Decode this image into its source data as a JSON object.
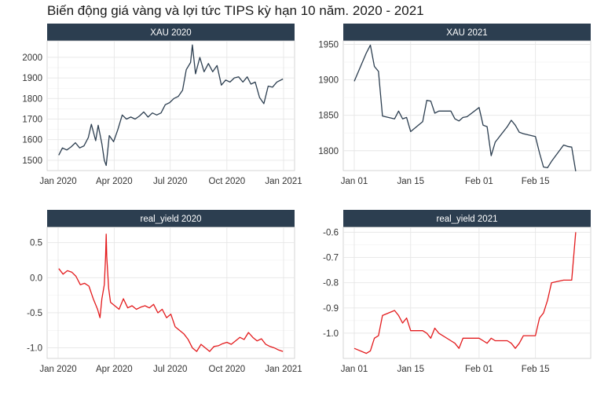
{
  "figure": {
    "title": "Biến động giá vàng và lợi tức TIPS kỳ hạn 10 năm. 2020 - 2021"
  },
  "colors": {
    "strip_bg": "#2c3e50",
    "strip_text": "#ffffff",
    "xau_line": "#2c3e50",
    "yield_line": "#e31a1c",
    "grid": "#e6e6e6",
    "axis_text": "#333333"
  },
  "chart_data": [
    {
      "type": "line",
      "panel": "XAU 2020",
      "strip": "XAU 2020",
      "x_scale": "date",
      "xlim": [
        "2020-01-01",
        "2021-01-01"
      ],
      "x_ticks": [
        {
          "x": "2020-01-01",
          "label": "Jan 2020"
        },
        {
          "x": "2020-04-01",
          "label": "Apr 2020"
        },
        {
          "x": "2020-07-01",
          "label": "Jul 2020"
        },
        {
          "x": "2020-10-01",
          "label": "Oct 2020"
        },
        {
          "x": "2021-01-01",
          "label": "Jan 2021"
        }
      ],
      "ylim": [
        1450,
        2080
      ],
      "y_ticks": [
        1500,
        1600,
        1700,
        1800,
        1900,
        2000
      ],
      "series": [
        {
          "x": [
            "2020-01-02",
            "2020-01-08",
            "2020-01-15",
            "2020-01-22",
            "2020-01-29",
            "2020-02-05",
            "2020-02-12",
            "2020-02-19",
            "2020-02-24",
            "2020-03-02",
            "2020-03-06",
            "2020-03-12",
            "2020-03-16",
            "2020-03-19",
            "2020-03-24",
            "2020-03-31",
            "2020-04-07",
            "2020-04-14",
            "2020-04-21",
            "2020-04-28",
            "2020-05-05",
            "2020-05-12",
            "2020-05-19",
            "2020-05-26",
            "2020-06-02",
            "2020-06-09",
            "2020-06-16",
            "2020-06-23",
            "2020-06-30",
            "2020-07-07",
            "2020-07-14",
            "2020-07-21",
            "2020-07-27",
            "2020-08-03",
            "2020-08-06",
            "2020-08-11",
            "2020-08-18",
            "2020-08-25",
            "2020-09-01",
            "2020-09-08",
            "2020-09-15",
            "2020-09-22",
            "2020-09-29",
            "2020-10-06",
            "2020-10-13",
            "2020-10-20",
            "2020-10-27",
            "2020-11-03",
            "2020-11-09",
            "2020-11-16",
            "2020-11-23",
            "2020-11-30",
            "2020-12-07",
            "2020-12-14",
            "2020-12-21",
            "2020-12-31"
          ],
          "y": [
            1525,
            1560,
            1550,
            1565,
            1585,
            1560,
            1570,
            1610,
            1675,
            1595,
            1670,
            1580,
            1500,
            1475,
            1620,
            1590,
            1650,
            1720,
            1700,
            1710,
            1700,
            1715,
            1735,
            1710,
            1730,
            1720,
            1730,
            1770,
            1780,
            1800,
            1810,
            1840,
            1940,
            1975,
            2060,
            1920,
            2000,
            1930,
            1970,
            1930,
            1960,
            1865,
            1890,
            1880,
            1900,
            1905,
            1880,
            1905,
            1870,
            1880,
            1805,
            1775,
            1860,
            1855,
            1880,
            1895
          ]
        }
      ]
    },
    {
      "type": "line",
      "panel": "XAU 2021",
      "strip": "XAU 2021",
      "x_scale": "date",
      "xlim": [
        "2021-01-01",
        "2021-02-26"
      ],
      "x_ticks": [
        {
          "x": "2021-01-01",
          "label": "Jan 01"
        },
        {
          "x": "2021-01-15",
          "label": "Jan 15"
        },
        {
          "x": "2021-02-01",
          "label": "Feb 01"
        },
        {
          "x": "2021-02-15",
          "label": "Feb 15"
        }
      ],
      "ylim": [
        1772,
        1955
      ],
      "y_ticks": [
        1800,
        1850,
        1900,
        1950
      ],
      "series": [
        {
          "x": [
            "2021-01-01",
            "2021-01-04",
            "2021-01-05",
            "2021-01-06",
            "2021-01-07",
            "2021-01-08",
            "2021-01-11",
            "2021-01-12",
            "2021-01-13",
            "2021-01-14",
            "2021-01-15",
            "2021-01-18",
            "2021-01-19",
            "2021-01-20",
            "2021-01-21",
            "2021-01-22",
            "2021-01-25",
            "2021-01-26",
            "2021-01-27",
            "2021-01-28",
            "2021-01-29",
            "2021-02-01",
            "2021-02-02",
            "2021-02-03",
            "2021-02-04",
            "2021-02-05",
            "2021-02-08",
            "2021-02-09",
            "2021-02-10",
            "2021-02-11",
            "2021-02-12",
            "2021-02-15",
            "2021-02-16",
            "2021-02-17",
            "2021-02-18",
            "2021-02-19",
            "2021-02-22",
            "2021-02-23",
            "2021-02-24",
            "2021-02-25"
          ],
          "y": [
            1898,
            1938,
            1949,
            1919,
            1912,
            1849,
            1845,
            1856,
            1845,
            1847,
            1827,
            1841,
            1871,
            1870,
            1853,
            1856,
            1856,
            1845,
            1842,
            1847,
            1848,
            1861,
            1836,
            1834,
            1793,
            1812,
            1834,
            1843,
            1836,
            1826,
            1824,
            1820,
            1797,
            1777,
            1776,
            1785,
            1808,
            1806,
            1805,
            1771
          ]
        }
      ]
    },
    {
      "type": "line",
      "panel": "real_yield 2020",
      "strip": "real_yield 2020",
      "x_scale": "date",
      "xlim": [
        "2020-01-01",
        "2021-01-01"
      ],
      "x_ticks": [
        {
          "x": "2020-01-01",
          "label": "Jan 2020"
        },
        {
          "x": "2020-04-01",
          "label": "Apr 2020"
        },
        {
          "x": "2020-07-01",
          "label": "Jul 2020"
        },
        {
          "x": "2020-10-01",
          "label": "Oct 2020"
        },
        {
          "x": "2021-01-01",
          "label": "Jan 2021"
        }
      ],
      "ylim": [
        -1.15,
        0.72
      ],
      "y_ticks": [
        -1.0,
        -0.5,
        0.0,
        0.5
      ],
      "y_tick_labels": [
        "-1.0",
        "-0.5",
        "0.0",
        "0.5"
      ],
      "series": [
        {
          "x": [
            "2020-01-02",
            "2020-01-09",
            "2020-01-16",
            "2020-01-23",
            "2020-01-30",
            "2020-02-06",
            "2020-02-13",
            "2020-02-20",
            "2020-02-27",
            "2020-03-05",
            "2020-03-09",
            "2020-03-12",
            "2020-03-16",
            "2020-03-18",
            "2020-03-19",
            "2020-03-20",
            "2020-03-23",
            "2020-03-26",
            "2020-04-02",
            "2020-04-09",
            "2020-04-16",
            "2020-04-23",
            "2020-04-30",
            "2020-05-07",
            "2020-05-14",
            "2020-05-21",
            "2020-05-28",
            "2020-06-04",
            "2020-06-11",
            "2020-06-18",
            "2020-06-25",
            "2020-07-02",
            "2020-07-09",
            "2020-07-16",
            "2020-07-23",
            "2020-07-30",
            "2020-08-06",
            "2020-08-13",
            "2020-08-20",
            "2020-08-27",
            "2020-09-03",
            "2020-09-10",
            "2020-09-17",
            "2020-09-24",
            "2020-10-01",
            "2020-10-08",
            "2020-10-15",
            "2020-10-22",
            "2020-10-29",
            "2020-11-05",
            "2020-11-12",
            "2020-11-19",
            "2020-11-26",
            "2020-12-03",
            "2020-12-10",
            "2020-12-17",
            "2020-12-24",
            "2020-12-31"
          ],
          "y": [
            0.13,
            0.05,
            0.1,
            0.08,
            0.02,
            -0.1,
            -0.08,
            -0.12,
            -0.3,
            -0.45,
            -0.57,
            -0.3,
            -0.1,
            0.3,
            0.62,
            0.3,
            -0.15,
            -0.35,
            -0.4,
            -0.45,
            -0.3,
            -0.43,
            -0.4,
            -0.45,
            -0.42,
            -0.4,
            -0.43,
            -0.38,
            -0.5,
            -0.45,
            -0.57,
            -0.52,
            -0.7,
            -0.75,
            -0.8,
            -0.88,
            -1.0,
            -1.05,
            -0.95,
            -1.0,
            -1.05,
            -0.98,
            -0.97,
            -0.94,
            -0.92,
            -0.95,
            -0.9,
            -0.85,
            -0.88,
            -0.78,
            -0.85,
            -0.9,
            -0.87,
            -0.95,
            -0.98,
            -1.0,
            -1.03,
            -1.05
          ]
        }
      ]
    },
    {
      "type": "line",
      "panel": "real_yield 2021",
      "strip": "real_yield 2021",
      "x_scale": "date",
      "xlim": [
        "2021-01-01",
        "2021-02-26"
      ],
      "x_ticks": [
        {
          "x": "2021-01-01",
          "label": "Jan 01"
        },
        {
          "x": "2021-01-15",
          "label": "Jan 15"
        },
        {
          "x": "2021-02-01",
          "label": "Feb 01"
        },
        {
          "x": "2021-02-15",
          "label": "Feb 15"
        }
      ],
      "ylim": [
        -1.1,
        -0.58
      ],
      "y_ticks": [
        -1.0,
        -0.9,
        -0.8,
        -0.7,
        -0.6
      ],
      "y_tick_labels": [
        "-1.0",
        "-0.9",
        "-0.8",
        "-0.7",
        "-0.6"
      ],
      "series": [
        {
          "x": [
            "2021-01-01",
            "2021-01-04",
            "2021-01-05",
            "2021-01-06",
            "2021-01-07",
            "2021-01-08",
            "2021-01-11",
            "2021-01-12",
            "2021-01-13",
            "2021-01-14",
            "2021-01-15",
            "2021-01-18",
            "2021-01-19",
            "2021-01-20",
            "2021-01-21",
            "2021-01-22",
            "2021-01-25",
            "2021-01-26",
            "2021-01-27",
            "2021-01-28",
            "2021-01-29",
            "2021-02-01",
            "2021-02-02",
            "2021-02-03",
            "2021-02-04",
            "2021-02-05",
            "2021-02-08",
            "2021-02-09",
            "2021-02-10",
            "2021-02-11",
            "2021-02-12",
            "2021-02-15",
            "2021-02-16",
            "2021-02-17",
            "2021-02-18",
            "2021-02-19",
            "2021-02-22",
            "2021-02-23",
            "2021-02-24",
            "2021-02-25"
          ],
          "y": [
            -1.06,
            -1.08,
            -1.07,
            -1.02,
            -1.01,
            -0.93,
            -0.91,
            -0.93,
            -0.96,
            -0.94,
            -0.99,
            -0.99,
            -1.0,
            -1.02,
            -0.98,
            -1.0,
            -1.03,
            -1.04,
            -1.06,
            -1.02,
            -1.02,
            -1.02,
            -1.03,
            -1.04,
            -1.02,
            -1.03,
            -1.03,
            -1.04,
            -1.06,
            -1.04,
            -1.01,
            -1.01,
            -0.94,
            -0.92,
            -0.87,
            -0.8,
            -0.79,
            -0.79,
            -0.79,
            -0.6
          ]
        }
      ]
    }
  ]
}
